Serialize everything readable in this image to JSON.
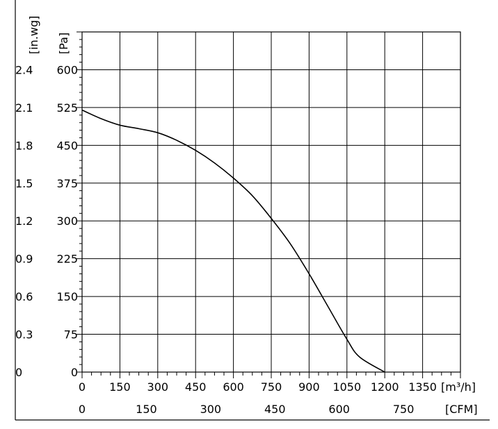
{
  "chart_data": {
    "type": "line",
    "title": "",
    "xlabel": "[m³/h]",
    "xlabel_secondary": "[CFM]",
    "ylabel": "[Pa]",
    "ylabel_secondary": "[in.wg]",
    "xlim": [
      0,
      1500
    ],
    "ylim": [
      0,
      675
    ],
    "grid": true,
    "x_ticks": [
      "0",
      "150",
      "300",
      "450",
      "600",
      "750",
      "900",
      "1050",
      "1200",
      "1350"
    ],
    "x_ticks_secondary": [
      "0",
      "150",
      "300",
      "450",
      "600",
      "750"
    ],
    "y_ticks": [
      "0",
      "75",
      "150",
      "225",
      "300",
      "375",
      "450",
      "525",
      "600"
    ],
    "y_ticks_secondary": [
      "0",
      "0.3",
      "0.6",
      "0.9",
      "1.2",
      "1.5",
      "1.8",
      "2.1",
      "2.4"
    ],
    "series": [
      {
        "values": [
          {
            "x": 0,
            "y": 520
          },
          {
            "x": 75,
            "y": 503
          },
          {
            "x": 150,
            "y": 490
          },
          {
            "x": 225,
            "y": 483
          },
          {
            "x": 300,
            "y": 475
          },
          {
            "x": 375,
            "y": 460
          },
          {
            "x": 450,
            "y": 440
          },
          {
            "x": 525,
            "y": 415
          },
          {
            "x": 600,
            "y": 385
          },
          {
            "x": 675,
            "y": 350
          },
          {
            "x": 750,
            "y": 305
          },
          {
            "x": 825,
            "y": 255
          },
          {
            "x": 900,
            "y": 195
          },
          {
            "x": 975,
            "y": 130
          },
          {
            "x": 1050,
            "y": 65
          },
          {
            "x": 1100,
            "y": 30
          },
          {
            "x": 1200,
            "y": 0
          }
        ]
      }
    ]
  }
}
